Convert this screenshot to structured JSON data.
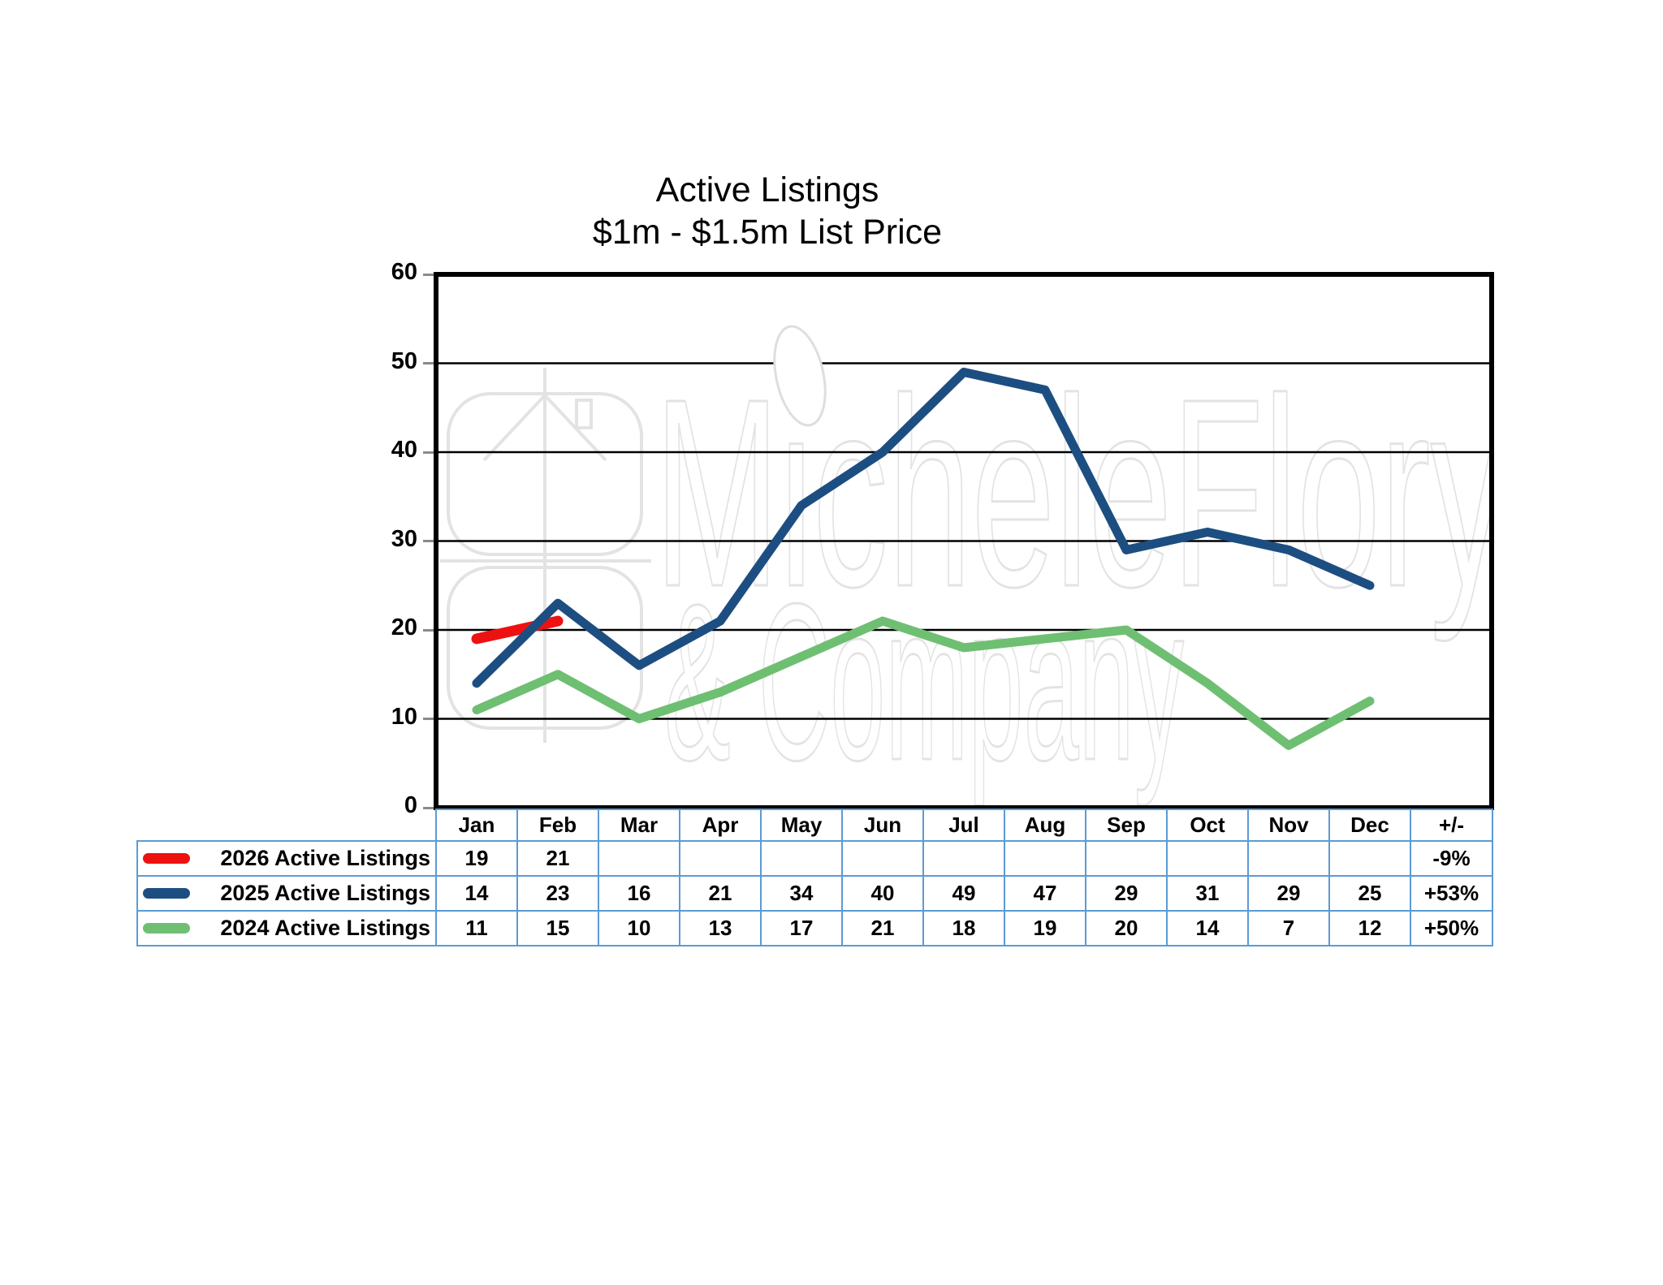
{
  "title": {
    "line1": "Active Listings",
    "line2": "$1m - $1.5m List Price"
  },
  "watermark": {
    "line1": "MicheleFlory",
    "line2": "& Company"
  },
  "axis": {
    "yticks": [
      0,
      10,
      20,
      30,
      40,
      50,
      60
    ]
  },
  "table": {
    "change_header": "+/-"
  },
  "colors": {
    "red_series": "#ee1111",
    "blue_series": "#1d4e82",
    "green_series": "#6fbf72",
    "table_border": "#5b9bd5",
    "grid_line": "#000000",
    "watermark_stroke": "#e3e3e3"
  },
  "chart_data": {
    "type": "line",
    "title": "Active Listings $1m - $1.5m List Price",
    "categories": [
      "Jan",
      "Feb",
      "Mar",
      "Apr",
      "May",
      "Jun",
      "Jul",
      "Aug",
      "Sep",
      "Oct",
      "Nov",
      "Dec"
    ],
    "xlabel": "",
    "ylabel": "",
    "ylim": [
      0,
      60
    ],
    "grid": true,
    "legend_position": "table-left",
    "series": [
      {
        "name": "2026 Active Listings",
        "color": "#ee1111",
        "values": [
          19,
          21,
          null,
          null,
          null,
          null,
          null,
          null,
          null,
          null,
          null,
          null
        ],
        "change": "-9%"
      },
      {
        "name": "2025 Active Listings",
        "color": "#1d4e82",
        "values": [
          14,
          23,
          16,
          21,
          34,
          40,
          49,
          47,
          29,
          31,
          29,
          25
        ],
        "change": "+53%"
      },
      {
        "name": "2024 Active Listings",
        "color": "#6fbf72",
        "values": [
          11,
          15,
          10,
          13,
          17,
          21,
          18,
          19,
          20,
          14,
          7,
          12
        ],
        "change": "+50%"
      }
    ]
  }
}
